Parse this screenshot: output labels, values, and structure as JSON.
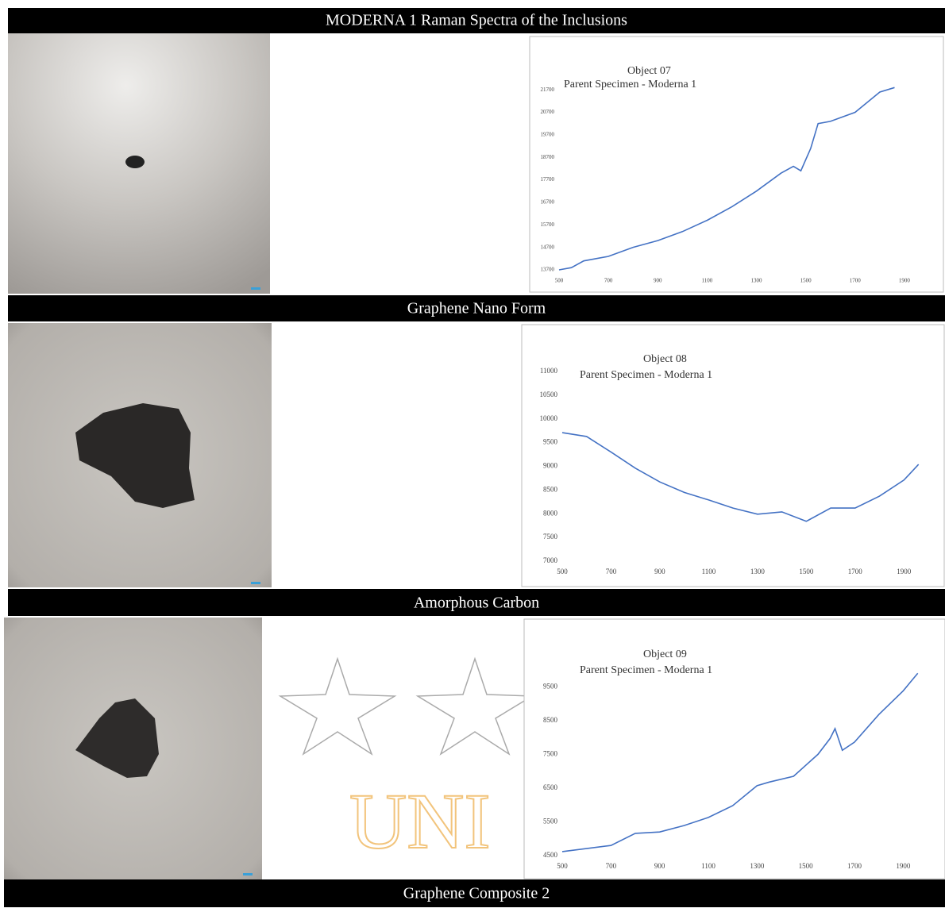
{
  "title": "MODERNA 1 Raman Spectra of the Inclusions",
  "watermark": "UNI",
  "panels": [
    {
      "caption": "Graphene Nano Form"
    },
    {
      "caption": "Amorphous Carbon"
    },
    {
      "caption": "Graphene Composite 2"
    }
  ],
  "chart_data": [
    {
      "type": "line",
      "annotations": [
        "Object 07",
        "Parent Specimen - Moderna 1"
      ],
      "color": "#4472c4",
      "x": [
        500,
        550,
        600,
        700,
        800,
        900,
        1000,
        1100,
        1200,
        1300,
        1400,
        1450,
        1480,
        1520,
        1550,
        1600,
        1700,
        1800,
        1860
      ],
      "values": [
        13700,
        13800,
        14100,
        14300,
        14700,
        15000,
        15400,
        15900,
        16500,
        17200,
        18000,
        18300,
        18100,
        19100,
        20200,
        20300,
        20700,
        21600,
        21800
      ],
      "xlim": [
        500,
        2000
      ],
      "xticks": [
        500,
        700,
        900,
        1100,
        1300,
        1500,
        1700,
        1900
      ],
      "ylim": [
        13700,
        22200
      ],
      "yticks": [
        13700,
        14700,
        15700,
        16700,
        17700,
        18700,
        19700,
        20700,
        21700
      ]
    },
    {
      "type": "line",
      "annotations": [
        "Object 08",
        "Parent Specimen - Moderna 1"
      ],
      "color": "#4472c4",
      "x": [
        500,
        600,
        700,
        800,
        900,
        1000,
        1100,
        1200,
        1300,
        1400,
        1500,
        1600,
        1700,
        1800,
        1900,
        1960
      ],
      "values": [
        9710,
        9630,
        9300,
        8960,
        8670,
        8450,
        8290,
        8120,
        7990,
        8040,
        7840,
        8120,
        8120,
        8370,
        8710,
        9040
      ],
      "xlim": [
        500,
        2000
      ],
      "xticks": [
        500,
        700,
        900,
        1100,
        1300,
        1500,
        1700,
        1900
      ],
      "ylim": [
        7000,
        11000
      ],
      "yticks": [
        7000,
        7500,
        8000,
        8500,
        9000,
        9500,
        10000,
        10500,
        11000
      ]
    },
    {
      "type": "line",
      "annotations": [
        "Object 09",
        "Parent Specimen - Moderna 1"
      ],
      "color": "#4472c4",
      "x": [
        500,
        700,
        800,
        900,
        1000,
        1100,
        1200,
        1300,
        1350,
        1450,
        1550,
        1600,
        1620,
        1650,
        1700,
        1800,
        1900,
        1960
      ],
      "values": [
        4620,
        4800,
        5160,
        5200,
        5390,
        5630,
        5980,
        6570,
        6680,
        6850,
        7500,
        7970,
        8260,
        7620,
        7860,
        8680,
        9380,
        9900
      ],
      "xlim": [
        500,
        2000
      ],
      "xticks": [
        500,
        700,
        900,
        1100,
        1300,
        1500,
        1700,
        1900
      ],
      "ylim": [
        4500,
        10000
      ],
      "yticks": [
        4500,
        5500,
        6500,
        7500,
        8500,
        9500
      ]
    }
  ]
}
